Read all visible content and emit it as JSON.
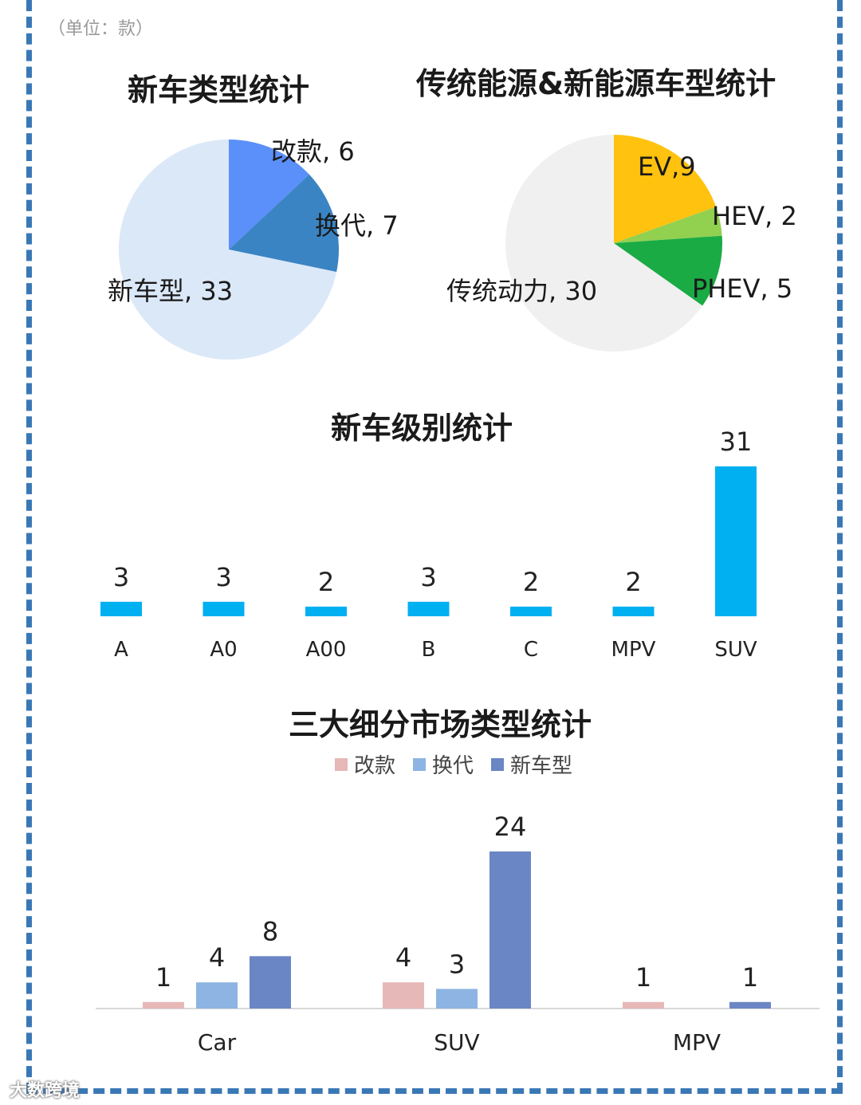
{
  "unit_note": "（单位：款）",
  "watermark": "大数跨境",
  "chart_data": [
    {
      "type": "pie",
      "title": "新车类型统计",
      "slices": [
        {
          "label": "改款",
          "value": 6,
          "display": "改款, 6",
          "color": "#5b8ff9"
        },
        {
          "label": "换代",
          "value": 7,
          "display": "换代, 7",
          "color": "#3a84c4"
        },
        {
          "label": "新车型",
          "value": 33,
          "display": "新车型, 33",
          "color": "#dbe8f8"
        }
      ]
    },
    {
      "type": "pie",
      "title": "传统能源&新能源车型统计",
      "slices": [
        {
          "label": "EV",
          "value": 9,
          "display": "EV,9",
          "color": "#ffc20e"
        },
        {
          "label": "HEV",
          "value": 2,
          "display": "HEV, 2",
          "color": "#92d050"
        },
        {
          "label": "PHEV",
          "value": 5,
          "display": "PHEV, 5",
          "color": "#1aab45"
        },
        {
          "label": "传统动力",
          "value": 30,
          "display": "传统动力, 30",
          "color": "#f0f0f0"
        }
      ]
    },
    {
      "type": "bar",
      "title": "新车级别统计",
      "categories": [
        "A",
        "A0",
        "A00",
        "B",
        "C",
        "MPV",
        "SUV"
      ],
      "values": [
        3,
        3,
        2,
        3,
        2,
        2,
        31
      ],
      "color": "#00b0f0",
      "ylim": [
        0,
        31
      ]
    },
    {
      "type": "bar",
      "title": "三大细分市场类型统计",
      "categories": [
        "Car",
        "SUV",
        "MPV"
      ],
      "series": [
        {
          "name": "改款",
          "values": [
            1,
            4,
            1
          ],
          "color": "#e6b8b7"
        },
        {
          "name": "换代",
          "values": [
            4,
            3,
            null
          ],
          "color": "#8db4e2"
        },
        {
          "name": "新车型",
          "values": [
            8,
            24,
            1
          ],
          "color": "#6b86c4"
        }
      ],
      "ylim": [
        0,
        24
      ]
    }
  ]
}
